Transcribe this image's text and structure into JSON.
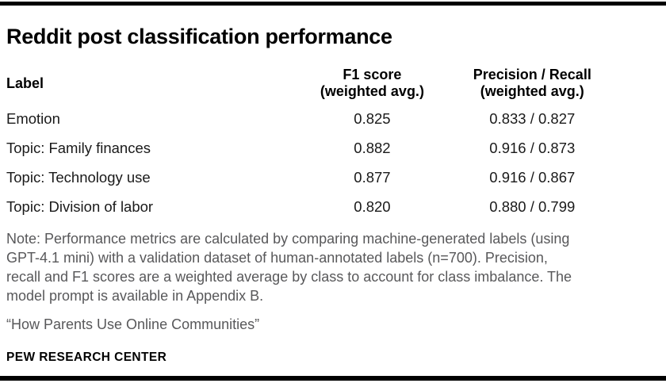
{
  "figure": {
    "title": "Reddit post classification performance"
  },
  "colors": {
    "accent_bar": "#000000",
    "note_gray": "#58585a",
    "text": "#1a1a1a"
  },
  "table": {
    "columns": [
      {
        "label": "Label",
        "sublabel": ""
      },
      {
        "label": "F1 score",
        "sublabel": "(weighted avg.)"
      },
      {
        "label": "Precision / Recall",
        "sublabel": "(weighted avg.)"
      }
    ],
    "rows": [
      {
        "label": "Emotion",
        "f1": "0.825",
        "precision_recall": "0.833 / 0.827"
      },
      {
        "label": "Topic: Family finances",
        "f1": "0.882",
        "precision_recall": "0.916 / 0.873"
      },
      {
        "label": "Topic: Technology use",
        "f1": "0.877",
        "precision_recall": "0.916 / 0.867"
      },
      {
        "label": "Topic: Division of labor",
        "f1": "0.820",
        "precision_recall": "0.880 / 0.799"
      }
    ]
  },
  "note": {
    "lines": [
      "Note: Performance metrics are calculated by comparing machine-generated labels (using",
      "GPT-4.1 mini) with a validation dataset of human-annotated labels (n=700). Precision,",
      "recall and F1 scores are a weighted average by class to account for class imbalance. The",
      "model prompt is available in Appendix B."
    ],
    "source_line": "“How Parents Use Online Communities”"
  },
  "footer": {
    "brand": "PEW RESEARCH CENTER"
  },
  "chart_data": {
    "type": "table",
    "title": "Reddit post classification performance",
    "columns": [
      "Label",
      "F1 score (weighted avg.)",
      "Precision / Recall (weighted avg.)"
    ],
    "rows": [
      {
        "label": "Emotion",
        "f1_weighted_avg": 0.825,
        "precision_weighted_avg": 0.833,
        "recall_weighted_avg": 0.827
      },
      {
        "label": "Topic: Family finances",
        "f1_weighted_avg": 0.882,
        "precision_weighted_avg": 0.916,
        "recall_weighted_avg": 0.873
      },
      {
        "label": "Topic: Technology use",
        "f1_weighted_avg": 0.877,
        "precision_weighted_avg": 0.916,
        "recall_weighted_avg": 0.867
      },
      {
        "label": "Topic: Division of labor",
        "f1_weighted_avg": 0.82,
        "precision_weighted_avg": 0.88,
        "recall_weighted_avg": 0.799
      }
    ],
    "note": "Note: Performance metrics are calculated by comparing machine-generated labels (using GPT-4.1 mini) with a validation dataset of human-annotated labels (n=700). Precision, recall and F1 scores are a weighted average by class to account for class imbalance. The model prompt is available in Appendix B.",
    "source": "“How Parents Use Online Communities”",
    "branding": "PEW RESEARCH CENTER"
  }
}
